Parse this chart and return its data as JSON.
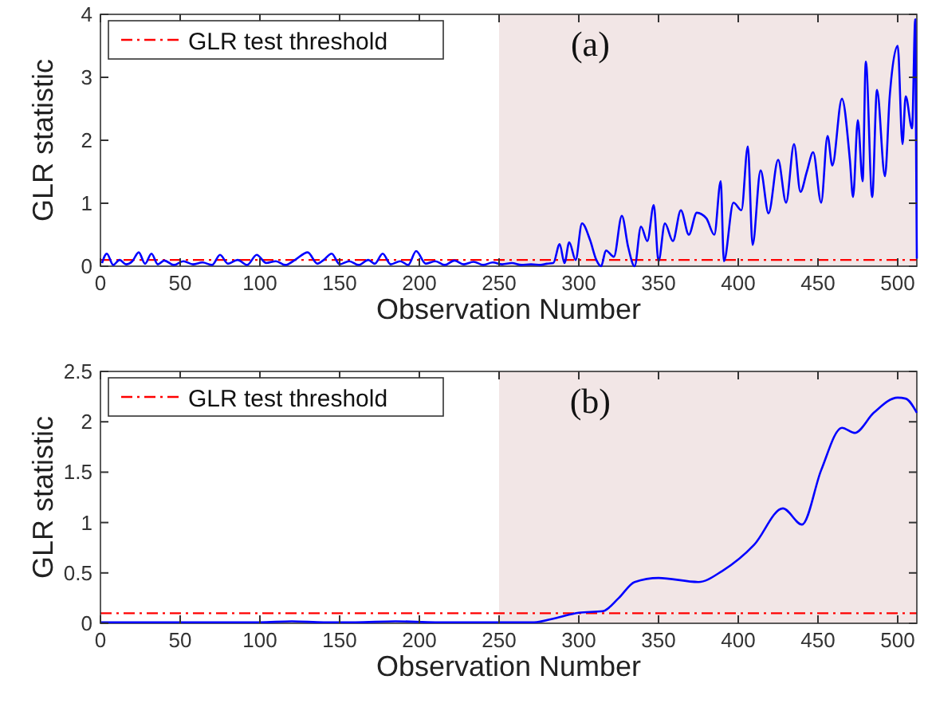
{
  "chart_data": [
    {
      "type": "line",
      "xlabel": "Observation Number",
      "ylabel": "GLR statistic",
      "annotations": [
        "(a)"
      ],
      "x": [
        1,
        4,
        8,
        12,
        16,
        20,
        24,
        28,
        32,
        36,
        40,
        46,
        52,
        58,
        64,
        70,
        75,
        80,
        86,
        92,
        98,
        104,
        110,
        116,
        122,
        130,
        136,
        140,
        145,
        150,
        156,
        162,
        168,
        172,
        177,
        182,
        188,
        193,
        198,
        204,
        210,
        216,
        222,
        228,
        234,
        240,
        246,
        252,
        258,
        264,
        270,
        276,
        280,
        284,
        288,
        291,
        294,
        298,
        302,
        307,
        311,
        314,
        317,
        322,
        327,
        331,
        335,
        339,
        343,
        347,
        350,
        354,
        359,
        364,
        369,
        374,
        380,
        385,
        389,
        391,
        397,
        402,
        406,
        409,
        414,
        419,
        425,
        430,
        435,
        439,
        443,
        447,
        452,
        456,
        459,
        465,
        470,
        472,
        475,
        478,
        480,
        484,
        487,
        492,
        495,
        500,
        503,
        505,
        509,
        511,
        512
      ],
      "series": [
        {
          "color": "#0000ff",
          "values": [
            0.05,
            0.2,
            0.02,
            0.1,
            0.03,
            0.08,
            0.22,
            0.04,
            0.2,
            0.03,
            0.09,
            0.02,
            0.08,
            0.03,
            0.06,
            0.02,
            0.18,
            0.04,
            0.1,
            0.02,
            0.18,
            0.05,
            0.08,
            0.02,
            0.1,
            0.22,
            0.04,
            0.1,
            0.2,
            0.03,
            0.08,
            0.02,
            0.1,
            0.04,
            0.2,
            0.03,
            0.08,
            0.02,
            0.24,
            0.04,
            0.08,
            0.02,
            0.09,
            0.03,
            0.07,
            0.02,
            0.06,
            0.03,
            0.05,
            0.02,
            0.03,
            0.02,
            0.04,
            0.05,
            0.35,
            0.05,
            0.38,
            0.1,
            0.68,
            0.42,
            0.1,
            0.0,
            0.25,
            0.15,
            0.8,
            0.3,
            0.0,
            0.63,
            0.4,
            0.97,
            0.08,
            0.68,
            0.4,
            0.89,
            0.5,
            0.85,
            0.76,
            0.5,
            1.35,
            0.08,
            1.01,
            0.89,
            1.9,
            0.34,
            1.52,
            0.84,
            1.69,
            1.01,
            1.94,
            1.18,
            1.5,
            1.81,
            1.01,
            2.07,
            1.6,
            2.66,
            1.69,
            1.1,
            2.32,
            1.35,
            3.25,
            1.1,
            2.8,
            1.43,
            2.7,
            3.5,
            1.94,
            2.7,
            2.19,
            3.92,
            0.12
          ]
        }
      ],
      "xlim": [
        0,
        512
      ],
      "ylim": [
        0,
        4
      ],
      "xticks": [
        0,
        50,
        100,
        150,
        200,
        250,
        300,
        350,
        400,
        450,
        500
      ],
      "yticks": [
        0,
        1,
        2,
        3,
        4
      ],
      "grid": false,
      "legend": "top left",
      "ref_lines": [
        {
          "axis": "y",
          "value": 0.1,
          "label": "GLR test threshold",
          "color": "#ff0000",
          "line_style": "dashdot"
        }
      ],
      "bands": [
        {
          "axis": "x",
          "from": 250,
          "to": 512,
          "color": "#f2e6e6"
        }
      ]
    },
    {
      "type": "line",
      "xlabel": "Observation Number",
      "ylabel": "GLR statistic",
      "annotations": [
        "(b)"
      ],
      "x": [
        0,
        20,
        40,
        60,
        80,
        100,
        120,
        140,
        160,
        185,
        210,
        230,
        250,
        265,
        272,
        285,
        300,
        315,
        325,
        335,
        350,
        375,
        390,
        410,
        428,
        440,
        452,
        465,
        473,
        485,
        500,
        505,
        512
      ],
      "series": [
        {
          "color": "#0000ff",
          "values": [
            0.01,
            0.01,
            0.01,
            0.01,
            0.01,
            0.01,
            0.02,
            0.01,
            0.01,
            0.02,
            0.01,
            0.01,
            0.01,
            0.01,
            0.01,
            0.05,
            0.105,
            0.12,
            0.25,
            0.41,
            0.45,
            0.41,
            0.52,
            0.78,
            1.14,
            0.98,
            1.52,
            1.94,
            1.89,
            2.09,
            2.24,
            2.23,
            2.09
          ]
        }
      ],
      "xlim": [
        0,
        512
      ],
      "ylim": [
        0,
        2.5
      ],
      "xticks": [
        0,
        50,
        100,
        150,
        200,
        250,
        300,
        350,
        400,
        450,
        500
      ],
      "yticks": [
        0,
        0.5,
        1,
        1.5,
        2,
        2.5
      ],
      "grid": false,
      "legend": "top left",
      "ref_lines": [
        {
          "axis": "y",
          "value": 0.1,
          "label": "GLR test threshold",
          "color": "#ff0000",
          "line_style": "dashdot"
        }
      ],
      "bands": [
        {
          "axis": "x",
          "from": 250,
          "to": 512,
          "color": "#f2e6e6"
        }
      ]
    }
  ]
}
